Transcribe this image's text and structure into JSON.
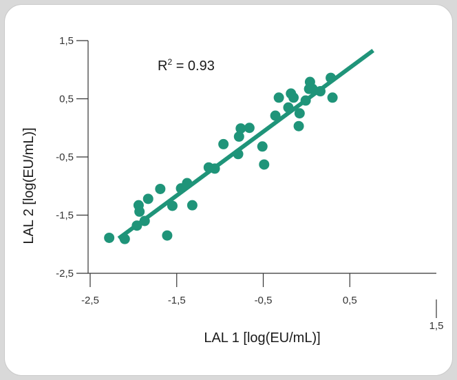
{
  "chart_data": {
    "type": "scatter",
    "title": "",
    "xlabel": "LAL 1  [log(EU/mL)]",
    "ylabel": "LAL 2 [log(EU/mL)]",
    "xlim": [
      -2.5,
      1.5
    ],
    "ylim": [
      -2.5,
      1.5
    ],
    "x_ticks": [
      "-2,5",
      "-1,5",
      "-0,5",
      "0,5",
      "1,5"
    ],
    "y_ticks": [
      "1,5",
      "0,5",
      "-0,5",
      "-1,5",
      "-2,5"
    ],
    "x_tick_values": [
      -2.5,
      -1.5,
      -0.5,
      0.5,
      1.5
    ],
    "y_tick_values": [
      1.5,
      0.5,
      -0.5,
      -1.5,
      -2.5
    ],
    "annotation": {
      "r_label": "R",
      "r_sup": "2",
      "r_value": " = 0.93"
    },
    "colors": {
      "points": "#1f9479",
      "fit_line": "#1f9479",
      "axis": "#333333",
      "panel_bg": "#ffffff",
      "page_bg": "#d9d9d9"
    },
    "fit_line": {
      "x": [
        -2.17,
        0.77
      ],
      "y": [
        -1.9,
        1.33
      ]
    },
    "points": {
      "x": [
        -2.28,
        -2.1,
        -1.96,
        -1.94,
        -1.93,
        -1.87,
        -1.83,
        -1.69,
        -1.61,
        -1.55,
        -1.45,
        -1.38,
        -1.32,
        -1.13,
        -1.06,
        -0.96,
        -0.79,
        -0.78,
        -0.76,
        -0.66,
        -0.51,
        -0.49,
        -0.36,
        -0.32,
        -0.21,
        -0.18,
        -0.15,
        -0.09,
        -0.08,
        -0.01,
        0.03,
        0.04,
        0.07,
        0.16,
        0.28,
        0.3
      ],
      "y": [
        -1.89,
        -1.91,
        -1.68,
        -1.33,
        -1.44,
        -1.6,
        -1.22,
        -1.05,
        -1.85,
        -1.34,
        -1.04,
        -0.95,
        -1.33,
        -0.68,
        -0.7,
        -0.28,
        -0.45,
        -0.15,
        -0.01,
        0.0,
        -0.32,
        -0.63,
        0.21,
        0.52,
        0.35,
        0.59,
        0.52,
        0.03,
        0.25,
        0.47,
        0.67,
        0.79,
        0.67,
        0.63,
        0.86,
        0.52
      ]
    }
  }
}
